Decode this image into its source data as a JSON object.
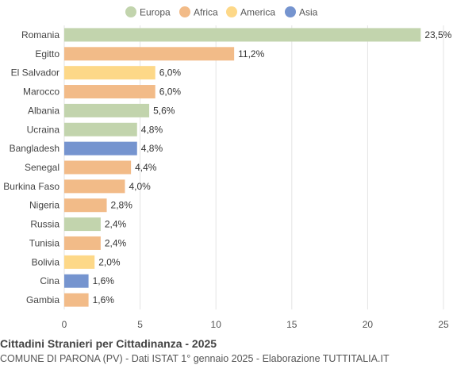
{
  "chart_data": {
    "type": "bar",
    "orientation": "horizontal",
    "title": "Cittadini Stranieri per Cittadinanza - 2025",
    "subtitle": "COMUNE DI PARONA (PV) - Dati ISTAT 1° gennaio 2025 - Elaborazione TUTTITALIA.IT",
    "legend_position": "top",
    "legend": [
      {
        "name": "Europa",
        "color": "#c2d4ad"
      },
      {
        "name": "Africa",
        "color": "#f2bb88"
      },
      {
        "name": "America",
        "color": "#fdd888"
      },
      {
        "name": "Asia",
        "color": "#7594cf"
      }
    ],
    "categories": [
      "Romania",
      "Egitto",
      "El Salvador",
      "Marocco",
      "Albania",
      "Ucraina",
      "Bangladesh",
      "Senegal",
      "Burkina Faso",
      "Nigeria",
      "Russia",
      "Tunisia",
      "Bolivia",
      "Cina",
      "Gambia"
    ],
    "values": [
      23.5,
      11.2,
      6.0,
      6.0,
      5.6,
      4.8,
      4.8,
      4.4,
      4.0,
      2.8,
      2.4,
      2.4,
      2.0,
      1.6,
      1.6
    ],
    "value_labels": [
      "23,5%",
      "11,2%",
      "6,0%",
      "6,0%",
      "5,6%",
      "4,8%",
      "4,8%",
      "4,4%",
      "4,0%",
      "2,8%",
      "2,4%",
      "2,4%",
      "2,0%",
      "1,6%",
      "1,6%"
    ],
    "continents": [
      "Europa",
      "Africa",
      "America",
      "Africa",
      "Europa",
      "Europa",
      "Asia",
      "Africa",
      "Africa",
      "Africa",
      "Europa",
      "Africa",
      "America",
      "Asia",
      "Africa"
    ],
    "xlim": [
      0,
      25
    ],
    "xticks": [
      0,
      5,
      10,
      15,
      20,
      25
    ],
    "grid": true
  }
}
